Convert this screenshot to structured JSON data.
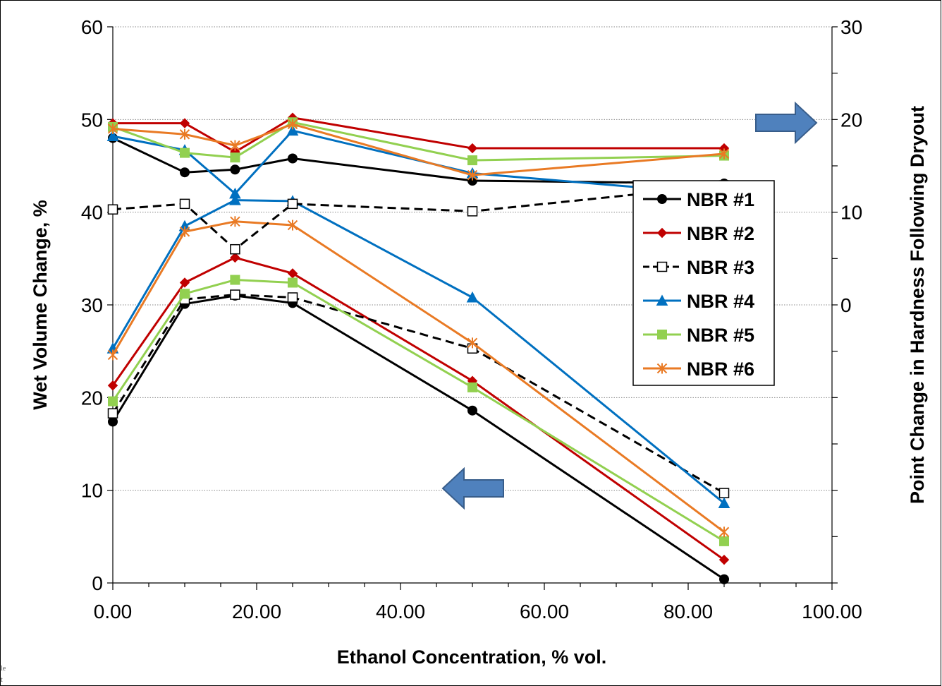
{
  "chart_data": {
    "type": "line",
    "title": "",
    "xlabel": "Ethanol Concentration, % vol.",
    "ylabel": "Wet Volume Change, %",
    "y2label": "Point Change in Hardness Following Dryout",
    "xlim": [
      0,
      100
    ],
    "ylim": [
      0,
      60
    ],
    "y2lim": [
      -30,
      30
    ],
    "x_ticks": [
      0,
      20,
      40,
      60,
      80,
      100
    ],
    "x_tick_labels": [
      "0.00",
      "20.00",
      "40.00",
      "60.00",
      "80.00",
      "100.00"
    ],
    "y_ticks": [
      0,
      10,
      20,
      30,
      40,
      50,
      60
    ],
    "y_tick_labels": [
      "0",
      "10",
      "20",
      "30",
      "40",
      "50",
      "60"
    ],
    "y2_ticks": [
      0,
      10,
      20,
      30
    ],
    "y2_tick_labels": [
      "0",
      "10",
      "20",
      "30"
    ],
    "x": [
      0,
      10,
      17,
      25,
      50,
      85
    ],
    "legend_position": "right-center",
    "grid": "horizontal dotted",
    "edge_text": [
      "le",
      "t"
    ],
    "series": [
      {
        "name": "NBR #1",
        "color": "#000000",
        "marker": "circle",
        "dash": false,
        "axis": "left",
        "values": [
          17.4,
          30.1,
          31.0,
          30.2,
          18.6,
          0.4
        ]
      },
      {
        "name": "NBR #2",
        "color": "#c00000",
        "marker": "diamond",
        "dash": false,
        "axis": "left",
        "values": [
          21.3,
          32.4,
          35.1,
          33.4,
          21.8,
          2.5
        ]
      },
      {
        "name": "NBR #3",
        "color": "#000000",
        "marker": "square-open",
        "dash": true,
        "axis": "left",
        "values": [
          18.3,
          30.6,
          31.1,
          30.8,
          25.3,
          9.7
        ]
      },
      {
        "name": "NBR #4",
        "color": "#0070c0",
        "marker": "triangle",
        "dash": false,
        "axis": "left",
        "values": [
          25.3,
          38.5,
          41.3,
          41.2,
          30.8,
          8.6
        ]
      },
      {
        "name": "NBR #5",
        "color": "#92d050",
        "marker": "square",
        "dash": false,
        "axis": "left",
        "values": [
          19.6,
          31.2,
          32.7,
          32.4,
          21.1,
          4.5
        ]
      },
      {
        "name": "NBR #6",
        "color": "#e97a24",
        "marker": "star",
        "dash": false,
        "axis": "left",
        "values": [
          24.6,
          37.9,
          39.0,
          38.6,
          25.9,
          5.5
        ]
      },
      {
        "name": "NBR #1",
        "color": "#000000",
        "marker": "circle",
        "dash": false,
        "axis": "right",
        "values": [
          18.0,
          14.3,
          14.6,
          15.8,
          13.4,
          13.1
        ]
      },
      {
        "name": "NBR #2",
        "color": "#c00000",
        "marker": "diamond",
        "dash": false,
        "axis": "right",
        "values": [
          19.6,
          19.6,
          16.5,
          20.2,
          16.9,
          16.9
        ]
      },
      {
        "name": "NBR #3",
        "color": "#000000",
        "marker": "square-open",
        "dash": true,
        "axis": "right",
        "values": [
          10.3,
          10.9,
          6.0,
          10.9,
          10.1,
          12.9
        ]
      },
      {
        "name": "NBR #4",
        "color": "#0070c0",
        "marker": "triangle",
        "dash": false,
        "axis": "right",
        "values": [
          18.2,
          16.7,
          12.0,
          18.8,
          14.2,
          11.9
        ]
      },
      {
        "name": "NBR #5",
        "color": "#92d050",
        "marker": "square",
        "dash": false,
        "axis": "right",
        "values": [
          19.2,
          16.4,
          15.9,
          19.7,
          15.6,
          16.1
        ]
      },
      {
        "name": "NBR #6",
        "color": "#e97a24",
        "marker": "star",
        "dash": false,
        "axis": "right",
        "values": [
          19.0,
          18.4,
          17.2,
          19.5,
          14.0,
          16.3
        ]
      }
    ]
  }
}
